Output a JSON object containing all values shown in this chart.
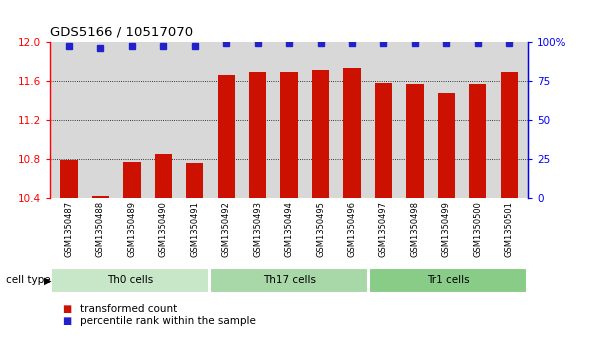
{
  "title": "GDS5166 / 10517070",
  "samples": [
    "GSM1350487",
    "GSM1350488",
    "GSM1350489",
    "GSM1350490",
    "GSM1350491",
    "GSM1350492",
    "GSM1350493",
    "GSM1350494",
    "GSM1350495",
    "GSM1350496",
    "GSM1350497",
    "GSM1350498",
    "GSM1350499",
    "GSM1350500",
    "GSM1350501"
  ],
  "transformed_counts": [
    10.79,
    10.42,
    10.77,
    10.85,
    10.76,
    11.66,
    11.69,
    11.69,
    11.71,
    11.73,
    11.58,
    11.57,
    11.47,
    11.57,
    11.69
  ],
  "percentile_ranks": [
    97,
    96,
    97,
    97,
    97,
    99,
    99,
    99,
    99,
    99,
    99,
    99,
    99,
    99,
    99
  ],
  "cell_type_groups": [
    {
      "label": "Th0 cells",
      "start": 0,
      "end": 5,
      "color": "#c8e6c8"
    },
    {
      "label": "Th17 cells",
      "start": 5,
      "end": 10,
      "color": "#a8d8a8"
    },
    {
      "label": "Tr1 cells",
      "start": 10,
      "end": 15,
      "color": "#88cc88"
    }
  ],
  "ylim": [
    10.4,
    12.0
  ],
  "yticks": [
    10.4,
    10.8,
    11.2,
    11.6,
    12.0
  ],
  "y2lim": [
    0,
    100
  ],
  "y2ticks": [
    0,
    25,
    50,
    75,
    100
  ],
  "bar_color": "#cc1100",
  "dot_color": "#2222cc",
  "bg_color": "#d8d8d8",
  "legend_label_red": "transformed count",
  "legend_label_blue": "percentile rank within the sample",
  "cell_type_label": "cell type",
  "gridline_ticks": [
    10.8,
    11.2,
    11.6
  ]
}
